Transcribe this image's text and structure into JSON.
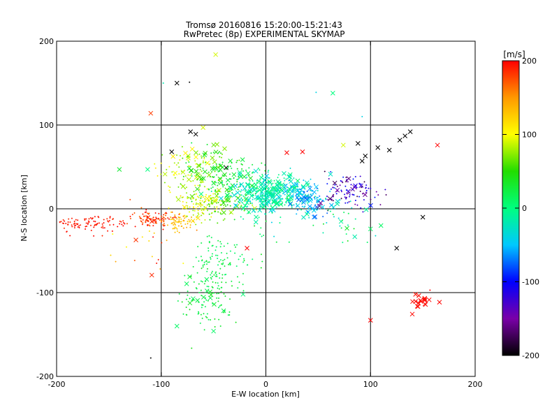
{
  "chart_data": {
    "type": "scatter",
    "title": "Tromsø 20160816 15:20:00-15:21:43",
    "subtitle": "RwPretec (8p) EXPERIMENTAL SKYMAP",
    "xlabel": "E-W location [km]",
    "ylabel": "N-S location [km]",
    "xlim": [
      -200,
      200
    ],
    "ylim": [
      -200,
      200
    ],
    "xticks": [
      -200,
      -100,
      0,
      100,
      200
    ],
    "yticks": [
      -200,
      -100,
      0,
      100,
      200
    ],
    "grid_lines_x": [
      -100,
      0,
      100
    ],
    "grid_lines_y": [
      -100,
      0,
      100
    ],
    "colorbar": {
      "label": "[m/s]",
      "range": [
        -200,
        200
      ],
      "ticks": [
        200,
        100,
        0,
        -100,
        -200
      ],
      "colormap": [
        "#000000",
        "#7a00a8",
        "#0000ff",
        "#00c8ff",
        "#00ff7f",
        "#22dd00",
        "#ffff00",
        "#ff9900",
        "#ff0000"
      ]
    },
    "markers": {
      "small": "dot",
      "large": "cross"
    },
    "clusters": [
      {
        "cx": -170,
        "cy": -18,
        "sx": 22,
        "sy": 5,
        "n": 110,
        "vmin": 185,
        "vmax": 200,
        "cross_frac": 0.0
      },
      {
        "cx": -108,
        "cy": -12,
        "sx": 10,
        "sy": 5,
        "n": 90,
        "vmin": 160,
        "vmax": 200,
        "cross_frac": 0.05
      },
      {
        "cx": -85,
        "cy": -15,
        "sx": 6,
        "sy": 6,
        "n": 60,
        "vmin": 120,
        "vmax": 150,
        "cross_frac": 0.0
      },
      {
        "cx": -62,
        "cy": 5,
        "sx": 10,
        "sy": 10,
        "n": 110,
        "vmin": 70,
        "vmax": 120,
        "cross_frac": 0.08
      },
      {
        "cx": -80,
        "cy": 40,
        "sx": 14,
        "sy": 14,
        "n": 70,
        "vmin": 60,
        "vmax": 110,
        "cross_frac": 0.25
      },
      {
        "cx": -55,
        "cy": 45,
        "sx": 14,
        "sy": 16,
        "n": 90,
        "vmin": 20,
        "vmax": 80,
        "cross_frac": 0.3
      },
      {
        "cx": -30,
        "cy": 35,
        "sx": 14,
        "sy": 14,
        "n": 90,
        "vmin": 10,
        "vmax": 45,
        "cross_frac": 0.2
      },
      {
        "cx": -35,
        "cy": 5,
        "sx": 12,
        "sy": 8,
        "n": 70,
        "vmin": 40,
        "vmax": 90,
        "cross_frac": 0.1
      },
      {
        "cx": 5,
        "cy": 18,
        "sx": 18,
        "sy": 12,
        "n": 330,
        "vmin": -45,
        "vmax": 10,
        "cross_frac": 0.45
      },
      {
        "cx": 40,
        "cy": 12,
        "sx": 12,
        "sy": 10,
        "n": 110,
        "vmin": -80,
        "vmax": -35,
        "cross_frac": 0.35
      },
      {
        "cx": 80,
        "cy": 20,
        "sx": 15,
        "sy": 10,
        "n": 100,
        "vmin": -180,
        "vmax": -90,
        "cross_frac": 0.15
      },
      {
        "cx": 70,
        "cy": -15,
        "sx": 15,
        "sy": 12,
        "n": 30,
        "vmin": -40,
        "vmax": 40,
        "cross_frac": 0.2
      },
      {
        "cx": -45,
        "cy": -60,
        "sx": 12,
        "sy": 14,
        "n": 80,
        "vmin": 5,
        "vmax": 30,
        "cross_frac": 0.05
      },
      {
        "cx": -55,
        "cy": -105,
        "sx": 12,
        "sy": 20,
        "n": 120,
        "vmin": 10,
        "vmax": 40,
        "cross_frac": 0.08
      },
      {
        "cx": -10,
        "cy": -45,
        "sx": 15,
        "sy": 25,
        "n": 25,
        "vmin": 0,
        "vmax": 40,
        "cross_frac": 0.05
      },
      {
        "cx": 145,
        "cy": -110,
        "sx": 6,
        "sy": 6,
        "n": 20,
        "vmin": 195,
        "vmax": 200,
        "cross_frac": 0.9
      },
      {
        "cx": -110,
        "cy": -30,
        "sx": 20,
        "sy": 25,
        "n": 25,
        "vmin": 100,
        "vmax": 200,
        "cross_frac": 0.1
      }
    ],
    "isolated_points": [
      {
        "x": -85,
        "y": 150,
        "v": -200,
        "m": "cross"
      },
      {
        "x": -73,
        "y": 151,
        "v": -200,
        "m": "dot"
      },
      {
        "x": -48,
        "y": 184,
        "v": 90,
        "m": "cross"
      },
      {
        "x": -98,
        "y": 150,
        "v": -20,
        "m": "dot"
      },
      {
        "x": -110,
        "y": 114,
        "v": 180,
        "m": "cross"
      },
      {
        "x": 64,
        "y": 138,
        "v": 0,
        "m": "cross"
      },
      {
        "x": 48,
        "y": 139,
        "v": -40,
        "m": "dot"
      },
      {
        "x": 92,
        "y": 110,
        "v": -40,
        "m": "dot"
      },
      {
        "x": 107,
        "y": 73,
        "v": -200,
        "m": "cross"
      },
      {
        "x": 118,
        "y": 70,
        "v": -200,
        "m": "cross"
      },
      {
        "x": 128,
        "y": 82,
        "v": -200,
        "m": "cross"
      },
      {
        "x": 133,
        "y": 87,
        "v": -200,
        "m": "cross"
      },
      {
        "x": 138,
        "y": 92,
        "v": -200,
        "m": "cross"
      },
      {
        "x": 164,
        "y": 76,
        "v": 200,
        "m": "cross"
      },
      {
        "x": 88,
        "y": 78,
        "v": -200,
        "m": "cross"
      },
      {
        "x": 95,
        "y": 63,
        "v": -200,
        "m": "cross"
      },
      {
        "x": 92,
        "y": 57,
        "v": -200,
        "m": "cross"
      },
      {
        "x": 74,
        "y": 76,
        "v": 90,
        "m": "cross"
      },
      {
        "x": 20,
        "y": 67,
        "v": 200,
        "m": "cross"
      },
      {
        "x": 35,
        "y": 68,
        "v": 200,
        "m": "cross"
      },
      {
        "x": -72,
        "y": 92,
        "v": -200,
        "m": "cross"
      },
      {
        "x": -67,
        "y": 89,
        "v": -200,
        "m": "cross"
      },
      {
        "x": -60,
        "y": 97,
        "v": 90,
        "m": "cross"
      },
      {
        "x": -140,
        "y": 47,
        "v": 30,
        "m": "cross"
      },
      {
        "x": -113,
        "y": 47,
        "v": 0,
        "m": "cross"
      },
      {
        "x": 150,
        "y": -10,
        "v": -200,
        "m": "cross"
      },
      {
        "x": 125,
        "y": -47,
        "v": -200,
        "m": "cross"
      },
      {
        "x": 100,
        "y": -133,
        "v": 200,
        "m": "cross"
      },
      {
        "x": -110,
        "y": -178,
        "v": -200,
        "m": "dot"
      },
      {
        "x": -85,
        "y": -140,
        "v": 10,
        "m": "cross"
      },
      {
        "x": -50,
        "y": -146,
        "v": 10,
        "m": "cross"
      },
      {
        "x": 100,
        "y": -24,
        "v": 10,
        "m": "cross"
      },
      {
        "x": 110,
        "y": -20,
        "v": 10,
        "m": "cross"
      },
      {
        "x": 97,
        "y": -40,
        "v": 10,
        "m": "dot"
      },
      {
        "x": -18,
        "y": -47,
        "v": 200,
        "m": "cross"
      },
      {
        "x": -38,
        "y": 49,
        "v": -200,
        "m": "cross"
      },
      {
        "x": -90,
        "y": 68,
        "v": -200,
        "m": "cross"
      }
    ]
  }
}
